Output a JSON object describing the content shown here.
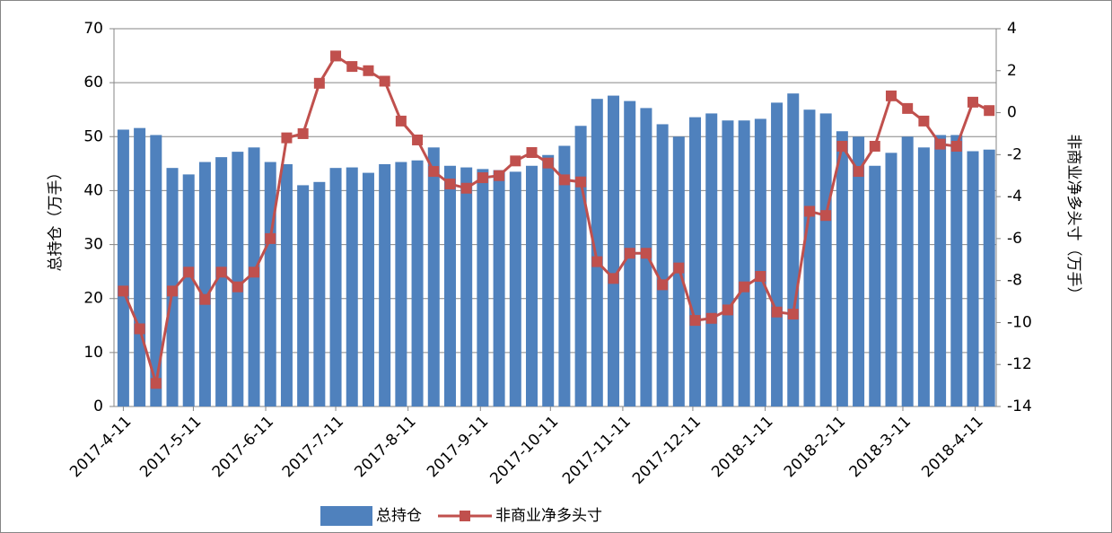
{
  "chart_data": {
    "type": "bar",
    "x": [
      "2017-4-11",
      "2017-4-18",
      "2017-4-25",
      "2017-5-2",
      "2017-5-9",
      "2017-5-16",
      "2017-5-23",
      "2017-5-30",
      "2017-6-6",
      "2017-6-13",
      "2017-6-20",
      "2017-6-27",
      "2017-7-4",
      "2017-7-11",
      "2017-7-18",
      "2017-7-25",
      "2017-8-1",
      "2017-8-8",
      "2017-8-15",
      "2017-8-22",
      "2017-8-29",
      "2017-9-5",
      "2017-9-12",
      "2017-9-19",
      "2017-9-26",
      "2017-10-3",
      "2017-10-10",
      "2017-10-17",
      "2017-10-24",
      "2017-10-31",
      "2017-11-7",
      "2017-11-14",
      "2017-11-21",
      "2017-11-28",
      "2017-12-5",
      "2017-12-12",
      "2017-12-19",
      "2017-12-26",
      "2018-1-2",
      "2018-1-9",
      "2018-1-16",
      "2018-1-23",
      "2018-1-30",
      "2018-2-6",
      "2018-2-13",
      "2018-2-20",
      "2018-2-27",
      "2018-3-6",
      "2018-3-13",
      "2018-3-20",
      "2018-3-27",
      "2018-4-3",
      "2018-4-10",
      "2018-4-17"
    ],
    "series": [
      {
        "name": "总持仓",
        "type": "bar",
        "color": "#4f81bd",
        "values": [
          51.3,
          51.6,
          50.3,
          44.2,
          43.0,
          45.3,
          46.2,
          47.2,
          48.0,
          45.3,
          44.9,
          41.0,
          41.6,
          44.2,
          44.3,
          43.3,
          44.9,
          45.3,
          45.6,
          48.0,
          44.6,
          44.3,
          44.0,
          43.8,
          43.5,
          44.6,
          46.6,
          48.3,
          52.0,
          57.0,
          57.6,
          56.6,
          55.3,
          52.3,
          50.0,
          53.6,
          54.3,
          53.0,
          53.0,
          53.3,
          56.3,
          58.0,
          55.0,
          54.3,
          51.0,
          50.0,
          44.6,
          47.0,
          50.0,
          48.0,
          50.3,
          50.3,
          47.3,
          47.6
        ]
      },
      {
        "name": "非商业净多头寸",
        "type": "line",
        "axis": "y2",
        "color": "#c0504d",
        "values": [
          -8.5,
          -10.3,
          -12.9,
          -8.5,
          -7.6,
          -8.9,
          -7.6,
          -8.3,
          -7.6,
          -6.0,
          -1.2,
          -1.0,
          1.4,
          2.7,
          2.2,
          2.0,
          1.5,
          -0.4,
          -1.3,
          -2.8,
          -3.4,
          -3.6,
          -3.1,
          -3.0,
          -2.3,
          -1.9,
          -2.4,
          -3.2,
          -3.3,
          -7.1,
          -7.9,
          -6.7,
          -6.7,
          -8.2,
          -7.4,
          -9.9,
          -9.8,
          -9.4,
          -8.3,
          -7.8,
          -9.5,
          -9.6,
          -4.7,
          -4.9,
          -1.6,
          -2.8,
          -1.6,
          0.8,
          0.2,
          -0.4,
          -1.5,
          -1.6,
          0.5,
          0.1
        ]
      }
    ],
    "xlim": [
      "2017-4-7",
      "2018-4-20"
    ],
    "xticks": [
      "2017-4-11",
      "2017-5-11",
      "2017-6-11",
      "2017-7-11",
      "2017-8-11",
      "2017-9-11",
      "2017-10-11",
      "2017-11-11",
      "2017-12-11",
      "2018-1-11",
      "2018-2-11",
      "2018-3-11",
      "2018-4-11"
    ],
    "ylim": [
      0,
      70
    ],
    "yticks": [
      0,
      10,
      20,
      30,
      40,
      50,
      60,
      70
    ],
    "y2lim": [
      -14,
      4
    ],
    "y2ticks": [
      -14,
      -12,
      -10,
      -8,
      -6,
      -4,
      -2,
      0,
      2,
      4
    ],
    "ylabel": "总持仓（万手）",
    "y2label": "非商业净多头寸（万手）",
    "grid": true,
    "legend": "bottom"
  }
}
